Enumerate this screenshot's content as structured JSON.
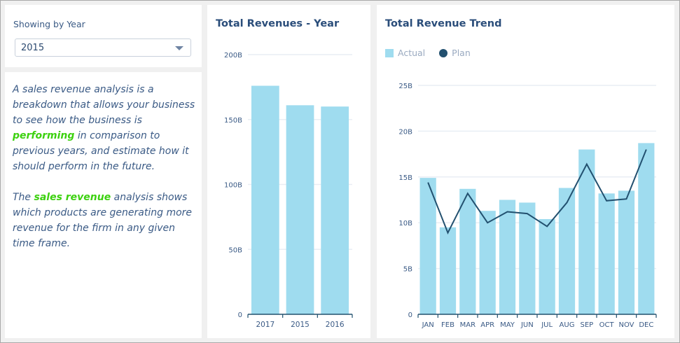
{
  "filter": {
    "label": "Showing by Year",
    "selected": "2015"
  },
  "description": {
    "p1_a": "A sales revenue analysis is a breakdown that allows your business to see how the business is ",
    "p1_highlight": "performing",
    "p1_b": " in comparison to previous years, and estimate how it should perform in the future.",
    "p2_a": "The ",
    "p2_highlight": "sales revenue",
    "p2_b": " analysis shows which products are generating more revenue for the firm in any given time frame."
  },
  "colors": {
    "bar": "#9fdcef",
    "line": "#22506f",
    "title": "#2a4d7a",
    "axis_text": "#3a5a85",
    "highlight": "#3cd10f",
    "grid": "#e9eef4"
  },
  "chart_data": [
    {
      "type": "bar",
      "title": "Total Revenues - Year",
      "categories": [
        "2017",
        "2015",
        "2016"
      ],
      "values": [
        176,
        161,
        160
      ],
      "unit": "B",
      "ylim": [
        0,
        200
      ],
      "yticks": [
        0,
        50,
        100,
        150,
        200
      ],
      "ytick_labels": [
        "0",
        "50B",
        "100B",
        "150B",
        "200B"
      ],
      "xlabel": "",
      "ylabel": "",
      "grid": true
    },
    {
      "type": "bar",
      "title": "Total Revenue Trend",
      "categories": [
        "JAN",
        "FEB",
        "MAR",
        "APR",
        "MAY",
        "JUN",
        "JUL",
        "AUG",
        "SEP",
        "OCT",
        "NOV",
        "DEC"
      ],
      "series": [
        {
          "name": "Actual",
          "type": "bar",
          "values": [
            14.9,
            9.5,
            13.7,
            11.3,
            12.5,
            12.2,
            10.4,
            13.8,
            18.0,
            13.2,
            13.5,
            18.7
          ]
        },
        {
          "name": "Plan",
          "type": "line",
          "values": [
            14.4,
            8.9,
            13.2,
            10.0,
            11.2,
            11.0,
            9.6,
            12.2,
            16.4,
            12.4,
            12.6,
            18.0
          ]
        }
      ],
      "unit": "B",
      "ylim": [
        0,
        25
      ],
      "yticks": [
        0,
        5,
        10,
        15,
        20,
        25
      ],
      "ytick_labels": [
        "0",
        "5B",
        "10B",
        "15B",
        "20B",
        "25B"
      ],
      "legend": [
        "Actual",
        "Plan"
      ],
      "legend_position": "top-left",
      "xlabel": "",
      "ylabel": "",
      "grid": true
    }
  ]
}
